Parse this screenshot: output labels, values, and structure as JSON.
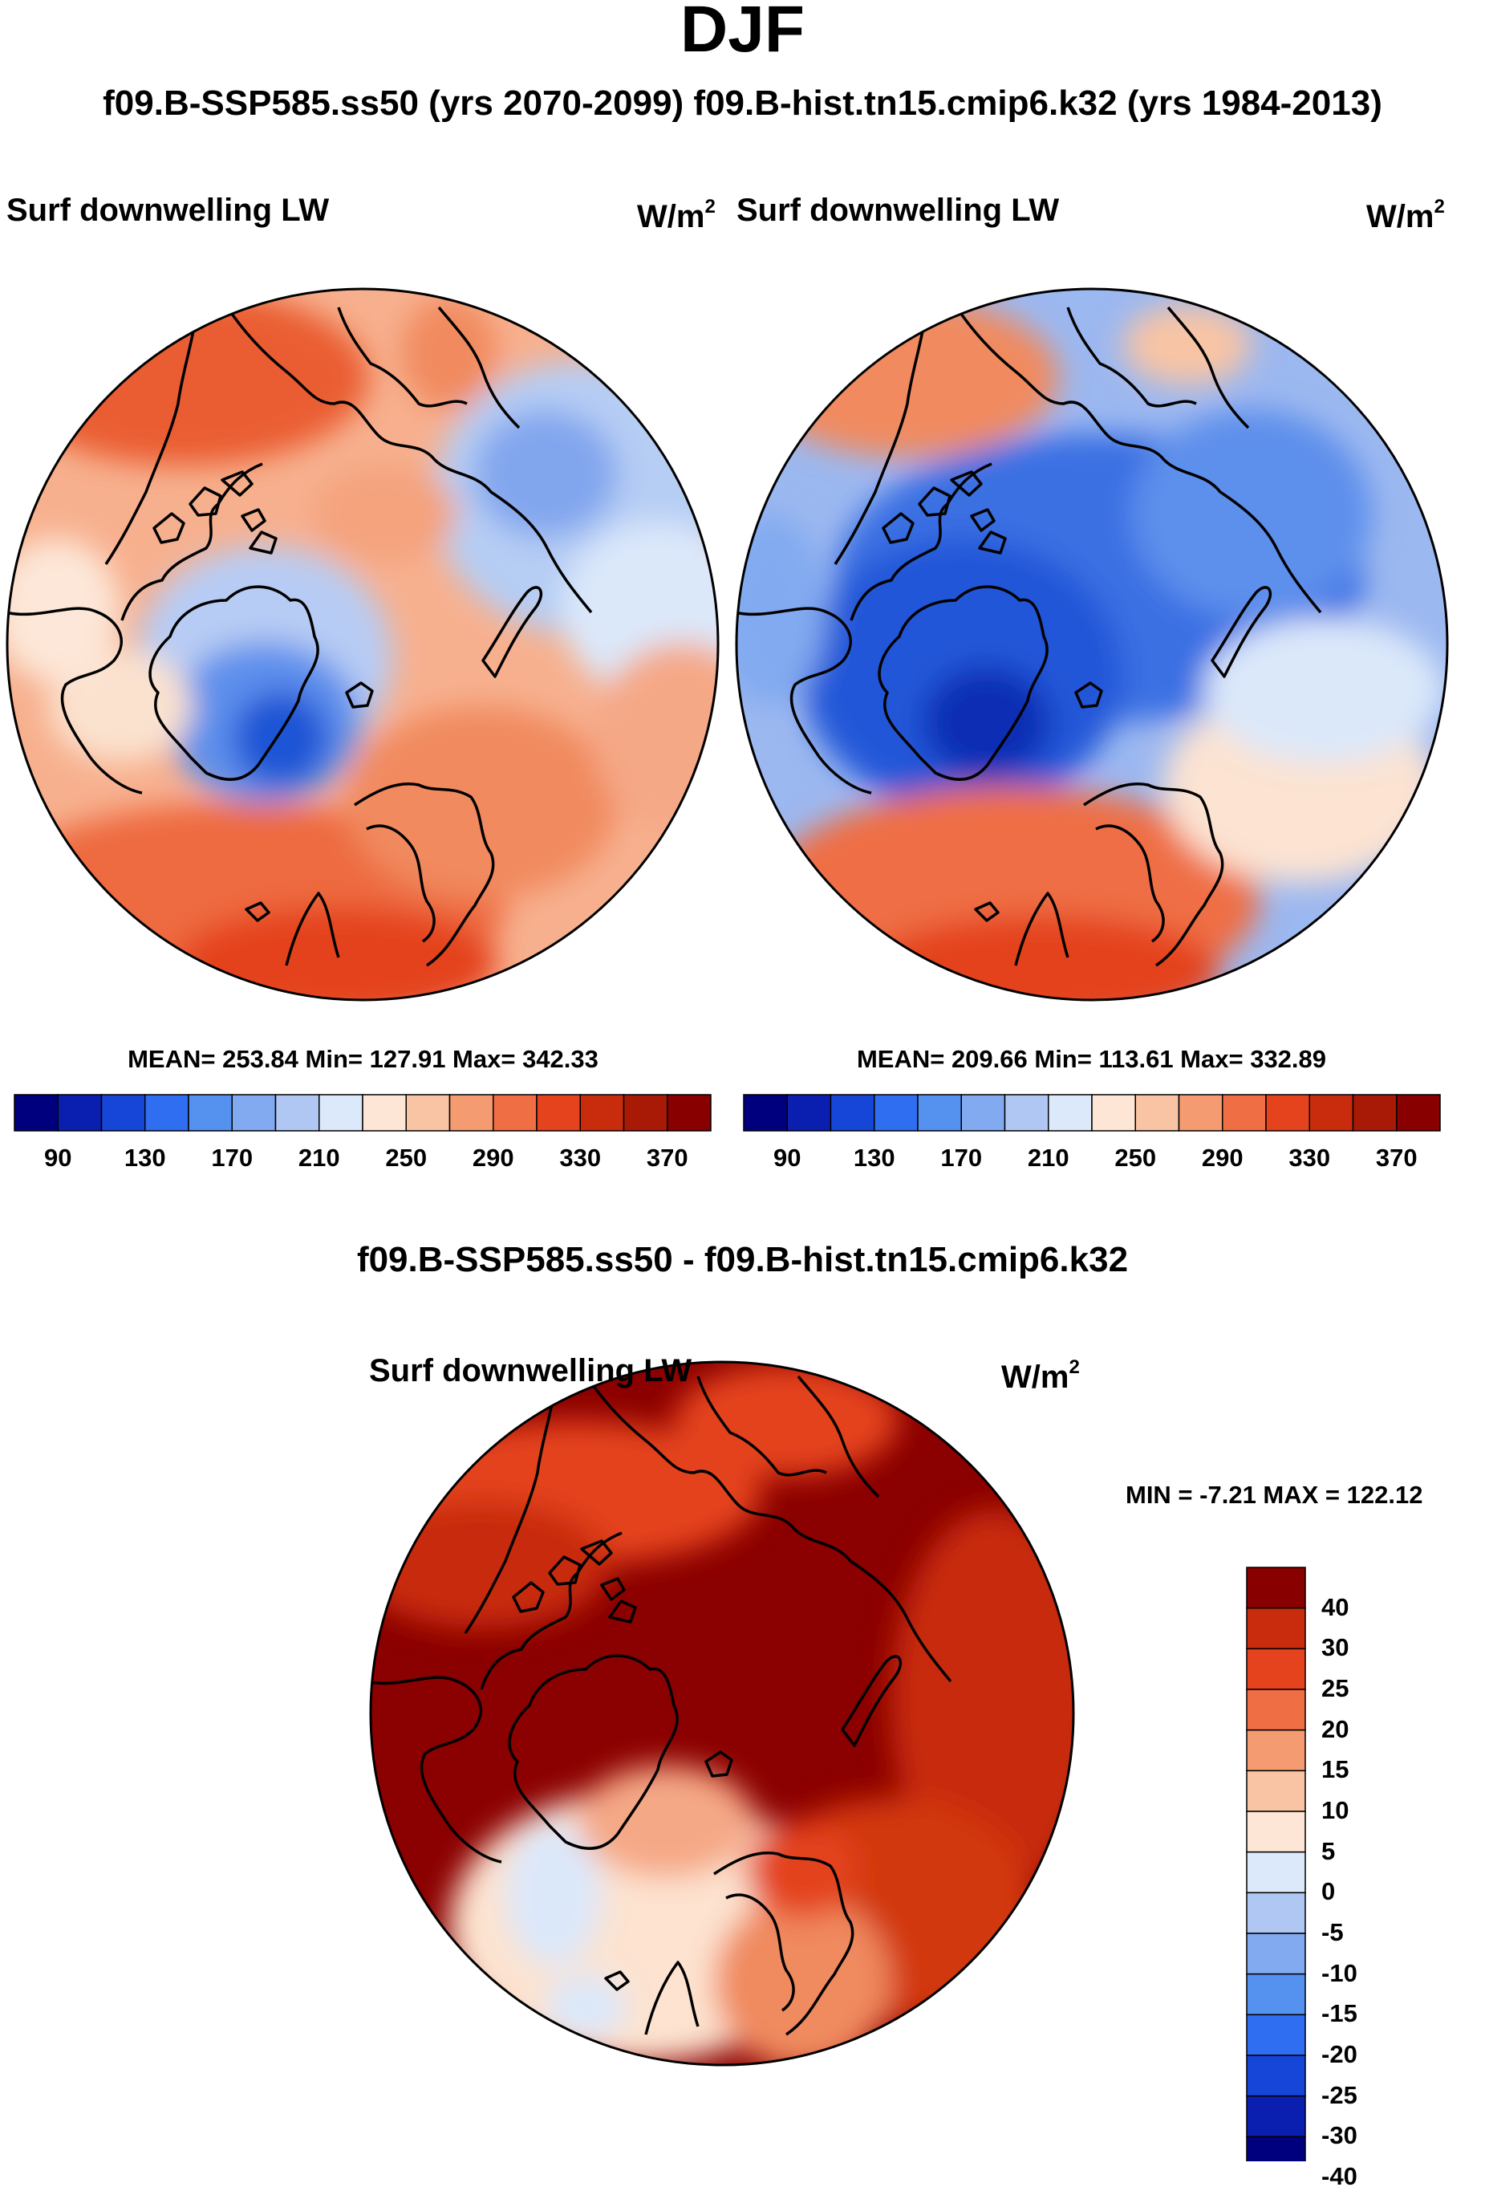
{
  "season": "DJF",
  "subtitle": "f09.B-SSP585.ss50 (yrs 2070-2099)  f09.B-hist.tn15.cmip6.k32 (yrs 1984-2013)",
  "variable_label": "Surf downwelling LW",
  "units": "W/m",
  "units_exponent": "2",
  "panels": [
    {
      "stats": "MEAN= 253.84  Min= 127.91  Max= 342.33"
    },
    {
      "stats": "MEAN= 209.66  Min= 113.61  Max= 332.89"
    }
  ],
  "diff_title": "f09.B-SSP585.ss50 - f09.B-hist.tn15.cmip6.k32",
  "diff_stats": "MIN =  -7.21 MAX = 122.12",
  "colorbar": {
    "colors": [
      "#00007f",
      "#0a1fb0",
      "#1646d8",
      "#2f6ef0",
      "#5591ef",
      "#82aaf0",
      "#b0c7f4",
      "#dce9fa",
      "#fde6d5",
      "#f8c4a4",
      "#f49b72",
      "#ef6e44",
      "#e4431e",
      "#c82c0c",
      "#a81a06",
      "#890000"
    ],
    "tick_labels": [
      "90",
      "130",
      "170",
      "210",
      "250",
      "290",
      "330",
      "370"
    ]
  },
  "diff_colorbar": {
    "colors": [
      "#00007f",
      "#0a1fb0",
      "#1646d8",
      "#2f6ef0",
      "#5591ef",
      "#82aaf0",
      "#b0c7f4",
      "#dce9fa",
      "#fde6d5",
      "#f8c4a4",
      "#f49b72",
      "#ef6e44",
      "#e4431e",
      "#c82c0c",
      "#890000"
    ],
    "tick_labels": [
      "-40",
      "-30",
      "-25",
      "-20",
      "-15",
      "-10",
      "-5",
      "0",
      "5",
      "10",
      "15",
      "20",
      "25",
      "30",
      "40"
    ]
  }
}
